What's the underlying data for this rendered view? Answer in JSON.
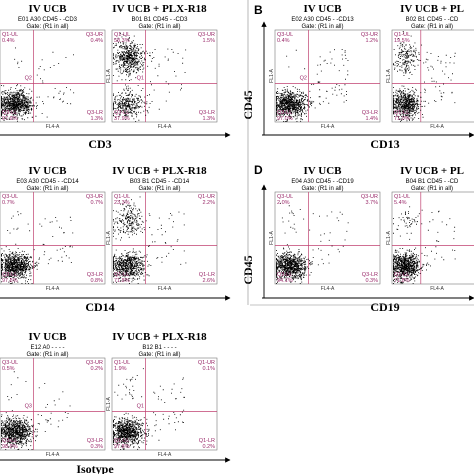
{
  "panels": [
    {
      "letter": "",
      "axis_label": "CD3",
      "y_axis_label": "",
      "plots": [
        {
          "title": "IV UCB",
          "header": "E01 A30 CD45 - -CD3",
          "gate": "Gate: (R1 in all)",
          "q1_ul": "Q1-UL",
          "q1_val": "0.4%",
          "q3_ur": "Q3-UR",
          "q3_val": "0.4%",
          "q3_ll": "Q3-LL",
          "ll_val": "97.9%",
          "q3_lr": "Q3-LR",
          "lr_val": "1.3%",
          "fl1": "FL1-A",
          "fl4": "FL4-A",
          "mid_label": "Q2"
        },
        {
          "title": "IV UCB + PLX-R18",
          "header": "B01 B1 CD45 - -CD3",
          "gate": "Gate: (R1 in all)",
          "q1_ul": "Q1-UL",
          "q1_val": "58.3%",
          "q3_ur": "Q3-UR",
          "q3_val": "1.5%",
          "q3_ll": "Q3-LL",
          "ll_val": "37.9%",
          "q3_lr": "Q3-LR",
          "lr_val": "1.3%",
          "fl1": "FL1-A",
          "fl4": "FL4-A",
          "mid_label": "Q1"
        }
      ]
    },
    {
      "letter": "B",
      "axis_label": "CD13",
      "y_axis_label": "CD45",
      "plots": [
        {
          "title": "IV UCB",
          "header": "E02 A30 CD45 - -CD13",
          "gate": "Gate: (R1 in all)",
          "q1_ul": "Q3-UL",
          "q1_val": "0.4%",
          "q3_ur": "Q3-UR",
          "q3_val": "1.2%",
          "q3_ll": "Q3-LL",
          "ll_val": "97.0%",
          "q3_lr": "Q3-LR",
          "lr_val": "1.4%",
          "fl1": "FL1-A",
          "fl4": "FL4-A",
          "mid_label": "Q2"
        },
        {
          "title": "IV UCB + PL",
          "header": "B02 B1 CD45 - -CD",
          "gate": "Gate: (R1 in all)",
          "q1_ul": "Q1-UL",
          "q1_val": "19.5%",
          "q3_ur": "",
          "q3_val": "",
          "q3_ll": "Q1-LL",
          "ll_val": "71.0%",
          "q3_lr": "",
          "lr_val": "",
          "fl1": "FL1-A",
          "fl4": "FL4-A",
          "mid_label": ""
        }
      ]
    },
    {
      "letter": "",
      "axis_label": "CD14",
      "y_axis_label": "",
      "plots": [
        {
          "title": "IV UCB",
          "header": "E03 A30 CD45 - -CD14",
          "gate": "Gate: (R1 in all)",
          "q1_ul": "Q3-UL",
          "q1_val": "0.7%",
          "q3_ur": "Q3-UR",
          "q3_val": "0.7%",
          "q3_ll": "Q3-LL",
          "ll_val": "97.8%",
          "q3_lr": "Q3-LR",
          "lr_val": "0.8%",
          "fl1": "FL1-A",
          "fl4": "FL4-A",
          "mid_label": ""
        },
        {
          "title": "IV UCB + PLX-R18",
          "header": "B03 B1 CD45 - -CD14",
          "gate": "Gate: (R1 in all)",
          "q1_ul": "Q1-UL",
          "q1_val": "23.3%",
          "q3_ur": "Q1-UR",
          "q3_val": "2.2%",
          "q3_ll": "Q1-LL",
          "ll_val": "71.8%",
          "q3_lr": "Q1-LR",
          "lr_val": "2.6%",
          "fl1": "FL1-A",
          "fl4": "FL4-A",
          "mid_label": ""
        }
      ]
    },
    {
      "letter": "D",
      "axis_label": "CD19",
      "y_axis_label": "CD45",
      "plots": [
        {
          "title": "IV UCB",
          "header": "E04 A30 CD45 - -CD19",
          "gate": "Gate: (R1 in all)",
          "q1_ul": "Q3-UL",
          "q1_val": "2.0%",
          "q3_ur": "Q3-UR",
          "q3_val": "3.7%",
          "q3_ll": "Q3-LL",
          "ll_val": "94.1%",
          "q3_lr": "Q3-LR",
          "lr_val": "0.3%",
          "fl1": "FL1-A",
          "fl4": "FL4-A",
          "mid_label": ""
        },
        {
          "title": "IV UCB + PL",
          "header": "B04 B1 CD45 - -CD",
          "gate": "Gate: (R1 in all)",
          "q1_ul": "Q1-UL",
          "q1_val": "5.4%",
          "q3_ur": "",
          "q3_val": "",
          "q3_ll": "Q1-LL",
          "ll_val": "71.8%",
          "q3_lr": "",
          "lr_val": "",
          "fl1": "FL1-A",
          "fl4": "FL4-A",
          "mid_label": ""
        }
      ]
    },
    {
      "letter": "",
      "axis_label": "Isotype",
      "y_axis_label": "",
      "plots": [
        {
          "title": "IV UCB",
          "header": "E12 A0 - - - -",
          "gate": "Gate: (R1 in all)",
          "q1_ul": "Q3-UL",
          "q1_val": "0.5%",
          "q3_ur": "Q3-UR",
          "q3_val": "0.2%",
          "q3_ll": "Q3-LL",
          "ll_val": "98.9%",
          "q3_lr": "Q3-LR",
          "lr_val": "0.3%",
          "fl1": "FL1-A",
          "fl4": "FL4-A",
          "mid_label": "Q3"
        },
        {
          "title": "IV UCB + PLX-R18",
          "header": "B12 B1 - - - -",
          "gate": "Gate: (R1 in all)",
          "q1_ul": "Q1-UL",
          "q1_val": "1.9%",
          "q3_ur": "Q1-UR",
          "q3_val": "0.1%",
          "q3_ll": "Q1-LL",
          "ll_val": "97.8%",
          "q3_lr": "Q1-LR",
          "lr_val": "0.2%",
          "fl1": "FL1-A",
          "fl4": "FL4-A",
          "mid_label": "Q1"
        }
      ]
    }
  ]
}
